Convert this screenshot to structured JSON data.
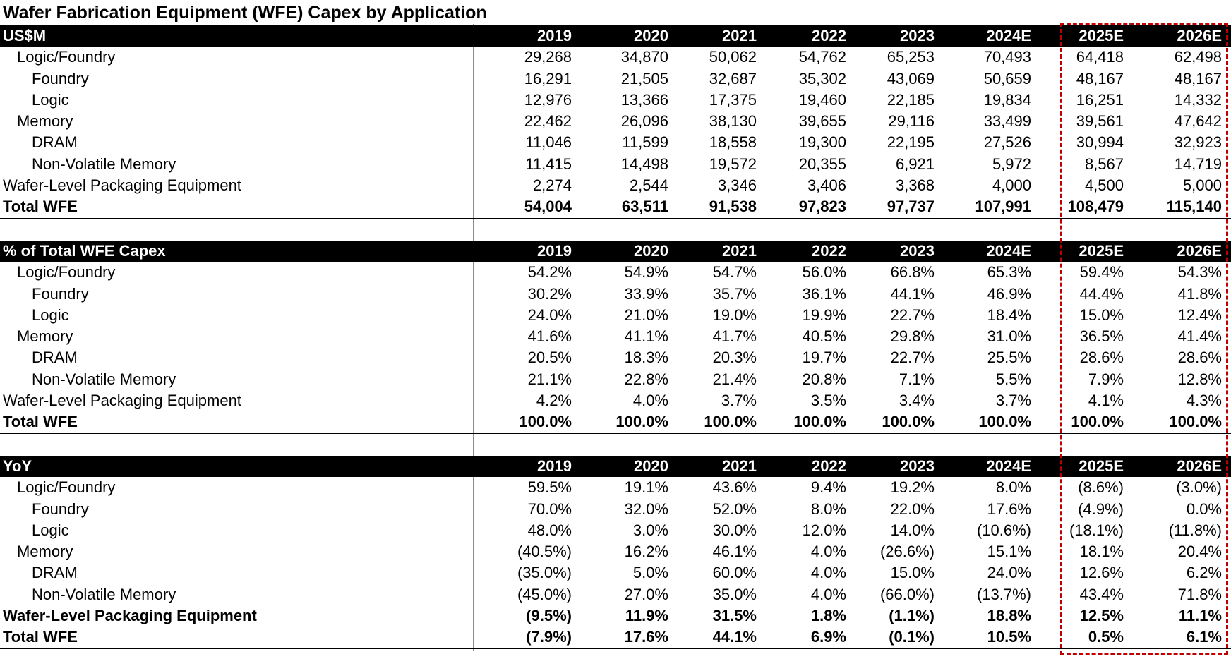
{
  "title": "Wafer Fabrication Equipment (WFE) Capex by Application",
  "highlight_color": "#c00000",
  "years": [
    "2019",
    "2020",
    "2021",
    "2022",
    "2023",
    "2024E",
    "2025E",
    "2026E"
  ],
  "sections": [
    {
      "header": "US$M",
      "rows": [
        {
          "label": "Logic/Foundry",
          "values": [
            "29,268",
            "34,870",
            "50,062",
            "54,762",
            "65,253",
            "70,493",
            "64,418",
            "62,498"
          ]
        },
        {
          "label": "Foundry",
          "values": [
            "16,291",
            "21,505",
            "32,687",
            "35,302",
            "43,069",
            "50,659",
            "48,167",
            "48,167"
          ]
        },
        {
          "label": "Logic",
          "values": [
            "12,976",
            "13,366",
            "17,375",
            "19,460",
            "22,185",
            "19,834",
            "16,251",
            "14,332"
          ]
        },
        {
          "label": "Memory",
          "values": [
            "22,462",
            "26,096",
            "38,130",
            "39,655",
            "29,116",
            "33,499",
            "39,561",
            "47,642"
          ]
        },
        {
          "label": "DRAM",
          "values": [
            "11,046",
            "11,599",
            "18,558",
            "19,300",
            "22,195",
            "27,526",
            "30,994",
            "32,923"
          ]
        },
        {
          "label": "Non-Volatile Memory",
          "values": [
            "11,415",
            "14,498",
            "19,572",
            "20,355",
            "6,921",
            "5,972",
            "8,567",
            "14,719"
          ]
        },
        {
          "label": "Wafer-Level Packaging Equipment",
          "values": [
            "2,274",
            "2,544",
            "3,346",
            "3,406",
            "3,368",
            "4,000",
            "4,500",
            "5,000"
          ]
        },
        {
          "label": "Total WFE",
          "values": [
            "54,004",
            "63,511",
            "91,538",
            "97,823",
            "97,737",
            "107,991",
            "108,479",
            "115,140"
          ]
        }
      ]
    },
    {
      "header": "% of Total WFE Capex",
      "rows": [
        {
          "label": "Logic/Foundry",
          "values": [
            "54.2%",
            "54.9%",
            "54.7%",
            "56.0%",
            "66.8%",
            "65.3%",
            "59.4%",
            "54.3%"
          ]
        },
        {
          "label": "Foundry",
          "values": [
            "30.2%",
            "33.9%",
            "35.7%",
            "36.1%",
            "44.1%",
            "46.9%",
            "44.4%",
            "41.8%"
          ]
        },
        {
          "label": "Logic",
          "values": [
            "24.0%",
            "21.0%",
            "19.0%",
            "19.9%",
            "22.7%",
            "18.4%",
            "15.0%",
            "12.4%"
          ]
        },
        {
          "label": "Memory",
          "values": [
            "41.6%",
            "41.1%",
            "41.7%",
            "40.5%",
            "29.8%",
            "31.0%",
            "36.5%",
            "41.4%"
          ]
        },
        {
          "label": "DRAM",
          "values": [
            "20.5%",
            "18.3%",
            "20.3%",
            "19.7%",
            "22.7%",
            "25.5%",
            "28.6%",
            "28.6%"
          ]
        },
        {
          "label": "Non-Volatile Memory",
          "values": [
            "21.1%",
            "22.8%",
            "21.4%",
            "20.8%",
            "7.1%",
            "5.5%",
            "7.9%",
            "12.8%"
          ]
        },
        {
          "label": "Wafer-Level Packaging Equipment",
          "values": [
            "4.2%",
            "4.0%",
            "3.7%",
            "3.5%",
            "3.4%",
            "3.7%",
            "4.1%",
            "4.3%"
          ]
        },
        {
          "label": "Total WFE",
          "values": [
            "100.0%",
            "100.0%",
            "100.0%",
            "100.0%",
            "100.0%",
            "100.0%",
            "100.0%",
            "100.0%"
          ]
        }
      ]
    },
    {
      "header": "YoY",
      "rows": [
        {
          "label": "Logic/Foundry",
          "values": [
            "59.5%",
            "19.1%",
            "43.6%",
            "9.4%",
            "19.2%",
            "8.0%",
            "(8.6%)",
            "(3.0%)"
          ]
        },
        {
          "label": "Foundry",
          "values": [
            "70.0%",
            "32.0%",
            "52.0%",
            "8.0%",
            "22.0%",
            "17.6%",
            "(4.9%)",
            "0.0%"
          ]
        },
        {
          "label": "Logic",
          "values": [
            "48.0%",
            "3.0%",
            "30.0%",
            "12.0%",
            "14.0%",
            "(10.6%)",
            "(18.1%)",
            "(11.8%)"
          ]
        },
        {
          "label": "Memory",
          "values": [
            "(40.5%)",
            "16.2%",
            "46.1%",
            "4.0%",
            "(26.6%)",
            "15.1%",
            "18.1%",
            "20.4%"
          ]
        },
        {
          "label": "DRAM",
          "values": [
            "(35.0%)",
            "5.0%",
            "60.0%",
            "4.0%",
            "15.0%",
            "24.0%",
            "12.6%",
            "6.2%"
          ]
        },
        {
          "label": "Non-Volatile Memory",
          "values": [
            "(45.0%)",
            "27.0%",
            "35.0%",
            "4.0%",
            "(66.0%)",
            "(13.7%)",
            "43.4%",
            "71.8%"
          ]
        },
        {
          "label": "Wafer-Level Packaging Equipment",
          "values": [
            "(9.5%)",
            "11.9%",
            "31.5%",
            "1.8%",
            "(1.1%)",
            "18.8%",
            "12.5%",
            "11.1%"
          ]
        },
        {
          "label": "Total WFE",
          "values": [
            "(7.9%)",
            "17.6%",
            "44.1%",
            "6.9%",
            "(0.1%)",
            "10.5%",
            "0.5%",
            "6.1%"
          ]
        }
      ]
    }
  ]
}
